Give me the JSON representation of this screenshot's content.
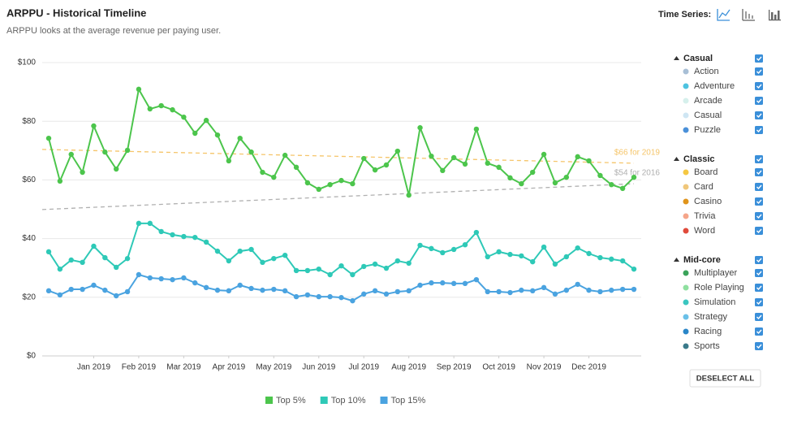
{
  "header": {
    "title": "ARPPU - Historical Timeline",
    "subtitle": "ARPPU looks at the average revenue per paying user.",
    "time_series_label": "Time Series:"
  },
  "chart_data": {
    "type": "line",
    "xlim": [
      0,
      52
    ],
    "xticks": [
      {
        "value": 4,
        "label": "Jan 2019"
      },
      {
        "value": 8,
        "label": "Feb 2019"
      },
      {
        "value": 12,
        "label": "Mar 2019"
      },
      {
        "value": 16,
        "label": "Apr 2019"
      },
      {
        "value": 20,
        "label": "May 2019"
      },
      {
        "value": 24,
        "label": "Jun 2019"
      },
      {
        "value": 28,
        "label": "Jul 2019"
      },
      {
        "value": 32,
        "label": "Aug 2019"
      },
      {
        "value": 36,
        "label": "Sep 2019"
      },
      {
        "value": 40,
        "label": "Oct 2019"
      },
      {
        "value": 44,
        "label": "Nov 2019"
      },
      {
        "value": 48,
        "label": "Dec 2019"
      }
    ],
    "ylim": [
      0,
      100
    ],
    "yticks": [
      {
        "value": 0,
        "label": "$0"
      },
      {
        "value": 20,
        "label": "$20"
      },
      {
        "value": 40,
        "label": "$40"
      },
      {
        "value": 60,
        "label": "$60"
      },
      {
        "value": 80,
        "label": "$80"
      },
      {
        "value": 100,
        "label": "$100"
      }
    ],
    "grid": true,
    "series": [
      {
        "name": "Top 5%",
        "color": "#4cc54c",
        "values": [
          74.2,
          59.6,
          68.7,
          62.6,
          78.4,
          69.5,
          63.7,
          70.1,
          90.9,
          84.2,
          85.3,
          83.9,
          81.4,
          75.9,
          80.3,
          75.3,
          66.5,
          74.2,
          69.5,
          62.6,
          60.9,
          68.4,
          64.3,
          59.0,
          56.8,
          58.4,
          59.8,
          58.7,
          67.3,
          63.4,
          65.1,
          69.8,
          54.8,
          77.8,
          68.1,
          63.2,
          67.6,
          65.4,
          77.3,
          65.7,
          64.3,
          60.7,
          58.7,
          62.6,
          68.7,
          59.0,
          60.9,
          67.9,
          66.5,
          61.5,
          58.4,
          57.1,
          60.9
        ]
      },
      {
        "name": "Top 10%",
        "color": "#2ec9b7",
        "values": [
          35.5,
          29.6,
          32.7,
          31.9,
          37.4,
          33.5,
          30.2,
          33.2,
          45.2,
          45.2,
          42.4,
          41.3,
          40.7,
          40.4,
          38.8,
          35.7,
          32.4,
          35.7,
          36.3,
          31.9,
          33.2,
          34.3,
          29.1,
          29.1,
          29.6,
          27.7,
          30.7,
          27.7,
          30.5,
          31.3,
          29.9,
          32.4,
          31.6,
          37.7,
          36.6,
          35.2,
          36.3,
          37.9,
          42.1,
          33.8,
          35.5,
          34.6,
          34.1,
          32.1,
          37.1,
          31.3,
          33.8,
          36.8,
          34.9,
          33.5,
          33.0,
          32.4,
          29.6
        ]
      },
      {
        "name": "Top 15%",
        "color": "#4aa3e0",
        "values": [
          22.2,
          20.8,
          22.7,
          22.7,
          24.1,
          22.4,
          20.5,
          21.9,
          27.7,
          26.6,
          26.3,
          26.0,
          26.6,
          24.9,
          23.3,
          22.4,
          22.2,
          24.1,
          23.0,
          22.4,
          22.7,
          22.2,
          20.2,
          20.8,
          20.2,
          20.2,
          19.9,
          18.8,
          21.1,
          22.2,
          21.1,
          21.9,
          22.2,
          24.1,
          24.9,
          24.9,
          24.7,
          24.7,
          26.0,
          21.9,
          21.9,
          21.6,
          22.4,
          22.2,
          23.3,
          21.1,
          22.4,
          24.4,
          22.4,
          21.9,
          22.4,
          22.7,
          22.7
        ]
      }
    ],
    "trendlines": [
      {
        "label": "$66 for 2019",
        "color": "#f5c56a",
        "start": 70.4,
        "end": 65.7
      },
      {
        "label": "$54 for 2016",
        "color": "#b0b0b0",
        "start": 49.9,
        "end": 58.7
      }
    ]
  },
  "filters": {
    "groups": [
      {
        "name": "Casual",
        "items": [
          {
            "name": "Action",
            "color": "#a8bfd6"
          },
          {
            "name": "Adventure",
            "color": "#4ec3e0"
          },
          {
            "name": "Arcade",
            "color": "#d6f0ec"
          },
          {
            "name": "Casual",
            "color": "#cfe6f3"
          },
          {
            "name": "Puzzle",
            "color": "#4a90d9"
          }
        ]
      },
      {
        "name": "Classic",
        "items": [
          {
            "name": "Board",
            "color": "#f5c842"
          },
          {
            "name": "Card",
            "color": "#f0c77a"
          },
          {
            "name": "Casino",
            "color": "#e0941a"
          },
          {
            "name": "Trivia",
            "color": "#f5a58a"
          },
          {
            "name": "Word",
            "color": "#e04a3a"
          }
        ]
      },
      {
        "name": "Mid-core",
        "items": [
          {
            "name": "Multiplayer",
            "color": "#3aa35a"
          },
          {
            "name": "Role Playing",
            "color": "#8fe0a0"
          },
          {
            "name": "Simulation",
            "color": "#3ac6c0"
          },
          {
            "name": "Strategy",
            "color": "#6ac0e8"
          },
          {
            "name": "Racing",
            "color": "#2a86c8"
          },
          {
            "name": "Sports",
            "color": "#3a7a8a"
          }
        ]
      }
    ],
    "button": "DESELECT ALL"
  }
}
